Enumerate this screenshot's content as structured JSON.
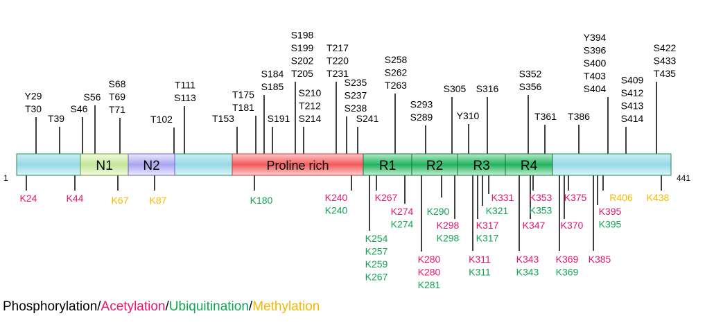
{
  "protein": {
    "start_label": "1",
    "end_label": "441",
    "domains": [
      {
        "label": "N1",
        "kind": "n1"
      },
      {
        "label": "N2",
        "kind": "n2"
      },
      {
        "label": "Proline rich",
        "kind": "pro"
      },
      {
        "label": "R1",
        "kind": "rep"
      },
      {
        "label": "R2",
        "kind": "rep"
      },
      {
        "label": "R3",
        "kind": "rep"
      },
      {
        "label": "R4",
        "kind": "rep"
      }
    ]
  },
  "phosphorylation_sites": [
    [
      "Y29",
      "T30"
    ],
    [
      "T39"
    ],
    [
      "S46"
    ],
    [
      "S56"
    ],
    [
      "S68",
      "T69",
      "T71"
    ],
    [
      "T102"
    ],
    [
      "T111",
      "S113"
    ],
    [
      "T153"
    ],
    [
      "T175",
      "T181"
    ],
    [
      "S184",
      "S185"
    ],
    [
      "S191"
    ],
    [
      "S198",
      "S199",
      "S202",
      "T205"
    ],
    [
      "S210",
      "T212",
      "S214"
    ],
    [
      "T217",
      "T220",
      "T231"
    ],
    [
      "S235",
      "S237",
      "S238"
    ],
    [
      "S241"
    ],
    [
      "S258",
      "S262",
      "T263"
    ],
    [
      "S293",
      "S289"
    ],
    [
      "S305"
    ],
    [
      "Y310"
    ],
    [
      "S316"
    ],
    [
      "S352",
      "S356"
    ],
    [
      "T361"
    ],
    [
      "T386"
    ],
    [
      "Y394",
      "S396",
      "S400",
      "T403",
      "S404"
    ],
    [
      "S409",
      "S412",
      "S413",
      "S414"
    ],
    [
      "S422",
      "S433",
      "T435"
    ]
  ],
  "lower_sites": [
    [
      {
        "t": "K24",
        "c": "acetylation"
      }
    ],
    [
      {
        "t": "K44",
        "c": "acetylation"
      }
    ],
    [
      {
        "t": "K67",
        "c": "methylation"
      }
    ],
    [
      {
        "t": "K87",
        "c": "methylation"
      }
    ],
    [
      {
        "t": "K180",
        "c": "ubiquitination"
      }
    ],
    [
      {
        "t": "K240",
        "c": "acetylation"
      },
      {
        "t": "K240",
        "c": "ubiquitination"
      }
    ],
    [
      {
        "t": "K254",
        "c": "ubiquitination"
      },
      {
        "t": "K257",
        "c": "ubiquitination"
      },
      {
        "t": "K259",
        "c": "ubiquitination"
      },
      {
        "t": "K267",
        "c": "ubiquitination"
      }
    ],
    [
      {
        "t": "K267",
        "c": "acetylation"
      }
    ],
    [
      {
        "t": "K274",
        "c": "acetylation"
      },
      {
        "t": "K274",
        "c": "ubiquitination"
      }
    ],
    [
      {
        "t": "K280",
        "c": "acetylation"
      },
      {
        "t": "K280",
        "c": "acetylation"
      },
      {
        "t": "K281",
        "c": "ubiquitination"
      }
    ],
    [
      {
        "t": "K290",
        "c": "ubiquitination"
      }
    ],
    [
      {
        "t": "K298",
        "c": "acetylation"
      },
      {
        "t": "K298",
        "c": "ubiquitination"
      }
    ],
    [
      {
        "t": "K311",
        "c": "acetylation"
      },
      {
        "t": "K311",
        "c": "ubiquitination"
      }
    ],
    [
      {
        "t": "K317",
        "c": "acetylation"
      },
      {
        "t": "K317",
        "c": "ubiquitination"
      }
    ],
    [
      {
        "t": "K321",
        "c": "ubiquitination"
      }
    ],
    [
      {
        "t": "K331",
        "c": "acetylation"
      }
    ],
    [
      {
        "t": "K343",
        "c": "acetylation"
      },
      {
        "t": "K343",
        "c": "ubiquitination"
      }
    ],
    [
      {
        "t": "K347",
        "c": "acetylation"
      }
    ],
    [
      {
        "t": "K353",
        "c": "acetylation"
      },
      {
        "t": "K353",
        "c": "ubiquitination"
      }
    ],
    [
      {
        "t": "K369",
        "c": "acetylation"
      },
      {
        "t": "K369",
        "c": "ubiquitination"
      }
    ],
    [
      {
        "t": "K370",
        "c": "acetylation"
      }
    ],
    [
      {
        "t": "K375",
        "c": "acetylation"
      }
    ],
    [
      {
        "t": "K385",
        "c": "acetylation"
      }
    ],
    [
      {
        "t": "K395",
        "c": "acetylation"
      },
      {
        "t": "K395",
        "c": "ubiquitination"
      }
    ],
    [
      {
        "t": "R406",
        "c": "methylation"
      }
    ],
    [
      {
        "t": "K438",
        "c": "methylation"
      }
    ]
  ],
  "legend": [
    {
      "label": "Phosphorylation",
      "c": "phosphorylation"
    },
    {
      "sep": "/"
    },
    {
      "label": "Acetylation",
      "c": "acetylation"
    },
    {
      "sep": "/"
    },
    {
      "label": "Ubiquitination",
      "c": "ubiquitination"
    },
    {
      "sep": "/"
    },
    {
      "label": "Methylation",
      "c": "methylation"
    }
  ],
  "colors": {
    "phosphorylation": "#000000",
    "acetylation": "#e8156e",
    "ubiquitination": "#12a353",
    "methylation": "#f5b800"
  }
}
